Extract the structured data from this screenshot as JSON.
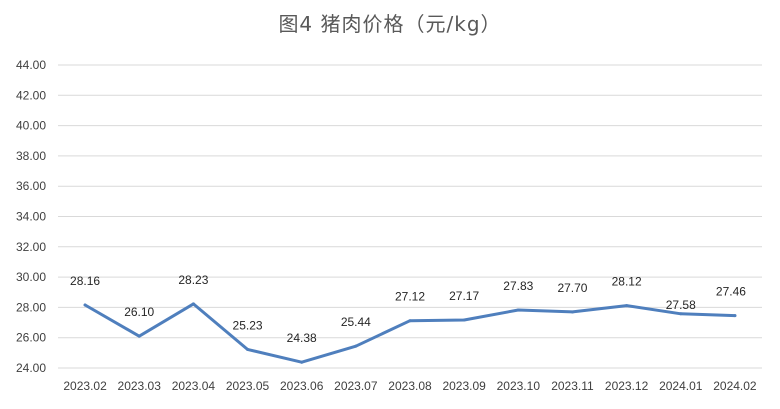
{
  "chart_data": {
    "type": "line",
    "title": "图4  猪肉价格（元/kg）",
    "categories": [
      "2023.02",
      "2023.03",
      "2023.04",
      "2023.05",
      "2023.06",
      "2023.07",
      "2023.08",
      "2023.09",
      "2023.10",
      "2023.11",
      "2023.12",
      "2024.01",
      "2024.02"
    ],
    "values": [
      28.16,
      26.1,
      28.23,
      25.23,
      24.38,
      25.44,
      27.12,
      27.17,
      27.83,
      27.7,
      28.12,
      27.58,
      27.46
    ],
    "data_labels": [
      "28.16",
      "26.10",
      "28.23",
      "25.23",
      "24.38",
      "25.44",
      "27.12",
      "27.17",
      "27.83",
      "27.70",
      "28.12",
      "27.58",
      "27.46"
    ],
    "ylim": [
      24,
      44
    ],
    "yticks": [
      "24.00",
      "26.00",
      "28.00",
      "30.00",
      "32.00",
      "34.00",
      "36.00",
      "38.00",
      "40.00",
      "42.00",
      "44.00"
    ],
    "xlabel": "",
    "ylabel": "",
    "grid": true,
    "line_color": "#4f7fbd",
    "grid_color": "#d9d9d9"
  }
}
